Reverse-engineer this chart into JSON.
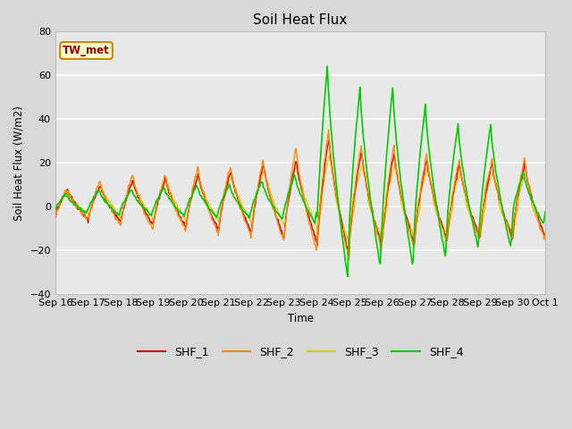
{
  "title": "Soil Heat Flux",
  "ylabel": "Soil Heat Flux (W/m2)",
  "xlabel": "Time",
  "ylim": [
    -40,
    80
  ],
  "xlim": [
    0,
    15
  ],
  "yticks": [
    -40,
    -20,
    0,
    20,
    40,
    60,
    80
  ],
  "tick_labels": [
    "Sep 16",
    "Sep 17",
    "Sep 18",
    "Sep 19",
    "Sep 20",
    "Sep 21",
    "Sep 22",
    "Sep 23",
    "Sep 24",
    "Sep 25",
    "Sep 26",
    "Sep 27",
    "Sep 28",
    "Sep 29",
    "Sep 30",
    "Oct 1"
  ],
  "colors": {
    "SHF_1": "#cc0000",
    "SHF_2": "#ff8800",
    "SHF_3": "#ddcc00",
    "SHF_4": "#00cc00"
  },
  "bg_color": "#e8e8e8",
  "fig_color": "#d8d8d8",
  "annotation_text": "TW_met",
  "annotation_bg": "#ffffcc",
  "annotation_border": "#cc8800",
  "annotation_text_color": "#990000"
}
